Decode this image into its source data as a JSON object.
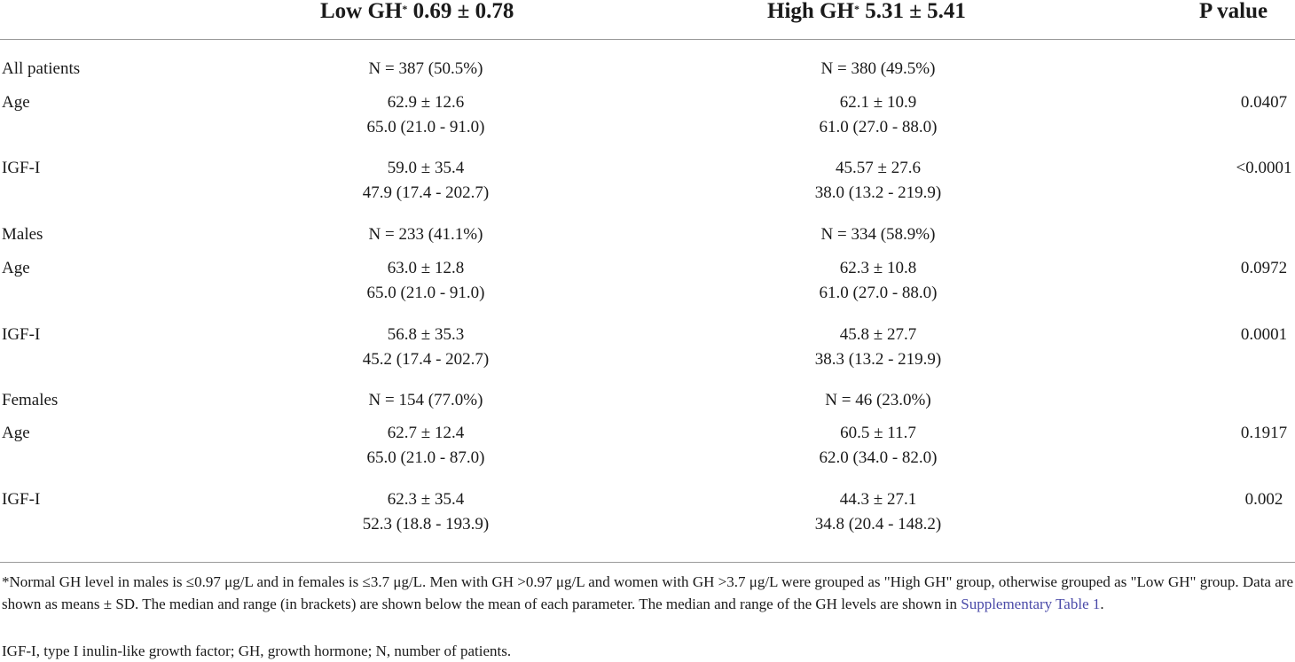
{
  "header": {
    "low": "Low GH",
    "low_mark": "*",
    "low_value": " 0.69 ± 0.78",
    "high": "High GH",
    "high_mark": "*",
    "high_value": " 5.31 ± 5.41",
    "p": "P value"
  },
  "rows": [
    {
      "label": "All patients",
      "low": [
        "N = 387 (50.5%)"
      ],
      "high": [
        "N = 380 (49.5%)"
      ],
      "p": ""
    },
    {
      "label": "Age",
      "low": [
        "62.9 ± 12.6",
        "65.0 (21.0 - 91.0)"
      ],
      "high": [
        "62.1 ± 10.9",
        "61.0 (27.0 - 88.0)"
      ],
      "p": "0.0407"
    },
    {
      "label": "IGF-I",
      "low": [
        "59.0 ± 35.4",
        "47.9 (17.4 - 202.7)"
      ],
      "high": [
        "45.57 ± 27.6",
        "38.0 (13.2 - 219.9)"
      ],
      "p": "<0.0001"
    },
    {
      "label": "Males",
      "low": [
        "N = 233 (41.1%)"
      ],
      "high": [
        "N = 334 (58.9%)"
      ],
      "p": ""
    },
    {
      "label": "Age",
      "low": [
        "63.0 ± 12.8",
        "65.0 (21.0 - 91.0)"
      ],
      "high": [
        "62.3 ± 10.8",
        "61.0 (27.0 - 88.0)"
      ],
      "p": "0.0972"
    },
    {
      "label": "IGF-I",
      "low": [
        "56.8 ± 35.3",
        "45.2 (17.4 - 202.7)"
      ],
      "high": [
        "45.8 ± 27.7",
        "38.3 (13.2 - 219.9)"
      ],
      "p": "0.0001"
    },
    {
      "label": "Females",
      "low": [
        "N = 154 (77.0%)"
      ],
      "high": [
        "N = 46 (23.0%)"
      ],
      "p": ""
    },
    {
      "label": "Age",
      "low": [
        "62.7 ± 12.4",
        "65.0 (21.0 - 87.0)"
      ],
      "high": [
        "60.5 ± 11.7",
        "62.0 (34.0 - 82.0)"
      ],
      "p": "0.1917"
    },
    {
      "label": "IGF-I",
      "low": [
        "62.3 ± 35.4",
        "52.3 (18.8 - 193.9)"
      ],
      "high": [
        "44.3 ± 27.1",
        "34.8 (20.4 - 148.2)"
      ],
      "p": "0.002"
    }
  ],
  "footnote": {
    "text": "*Normal GH level in males is ≤0.97 μg/L and in females is ≤3.7 μg/L. Men with GH >0.97 μg/L and women with GH >3.7 μg/L were grouped as \"High GH\" group, otherwise grouped as \"Low GH\" group. Data are shown as means ± SD. The median and range (in brackets) are shown below the mean of each parameter. The median and range of the GH levels are shown in ",
    "link": "Supplementary Table 1",
    "end": ".",
    "abbrev": "IGF-I, type I inulin-like growth factor; GH, growth hormone; N, number of patients."
  }
}
